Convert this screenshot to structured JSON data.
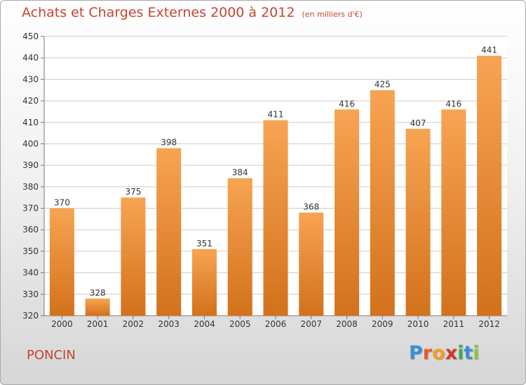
{
  "header": {
    "title": "Achats et Charges Externes 2000 à 2012",
    "unit": "(en milliers d'€)"
  },
  "footer": {
    "commune": "PONCIN",
    "brand_letters": [
      "P",
      "r",
      "o",
      "x",
      "i",
      "t",
      "i"
    ],
    "brand_colors": [
      "#3a8fd6",
      "#e8572b",
      "#f2a019",
      "#d9342b",
      "#3fae49",
      "#3a8fd6",
      "#8cc63f"
    ]
  },
  "colors": {
    "bar_top": "#f7a452",
    "bar_bottom": "#d3711c",
    "title": "#c4452f",
    "grid": "#cccccc",
    "text": "#333333"
  },
  "chart_data": {
    "type": "bar",
    "title": "Achats et Charges Externes 2000 à 2012",
    "subtitle": "(en milliers d'€)",
    "categories": [
      "2000",
      "2001",
      "2002",
      "2003",
      "2004",
      "2005",
      "2006",
      "2007",
      "2008",
      "2009",
      "2010",
      "2011",
      "2012"
    ],
    "values": [
      370,
      328,
      375,
      398,
      351,
      384,
      411,
      368,
      416,
      425,
      407,
      416,
      441
    ],
    "ylim": [
      320,
      450
    ],
    "yticks": [
      320,
      330,
      340,
      350,
      360,
      370,
      380,
      390,
      400,
      410,
      420,
      430,
      440,
      450
    ],
    "xlabel": "",
    "ylabel": "",
    "grid": "horizontal",
    "data_labels": true
  }
}
